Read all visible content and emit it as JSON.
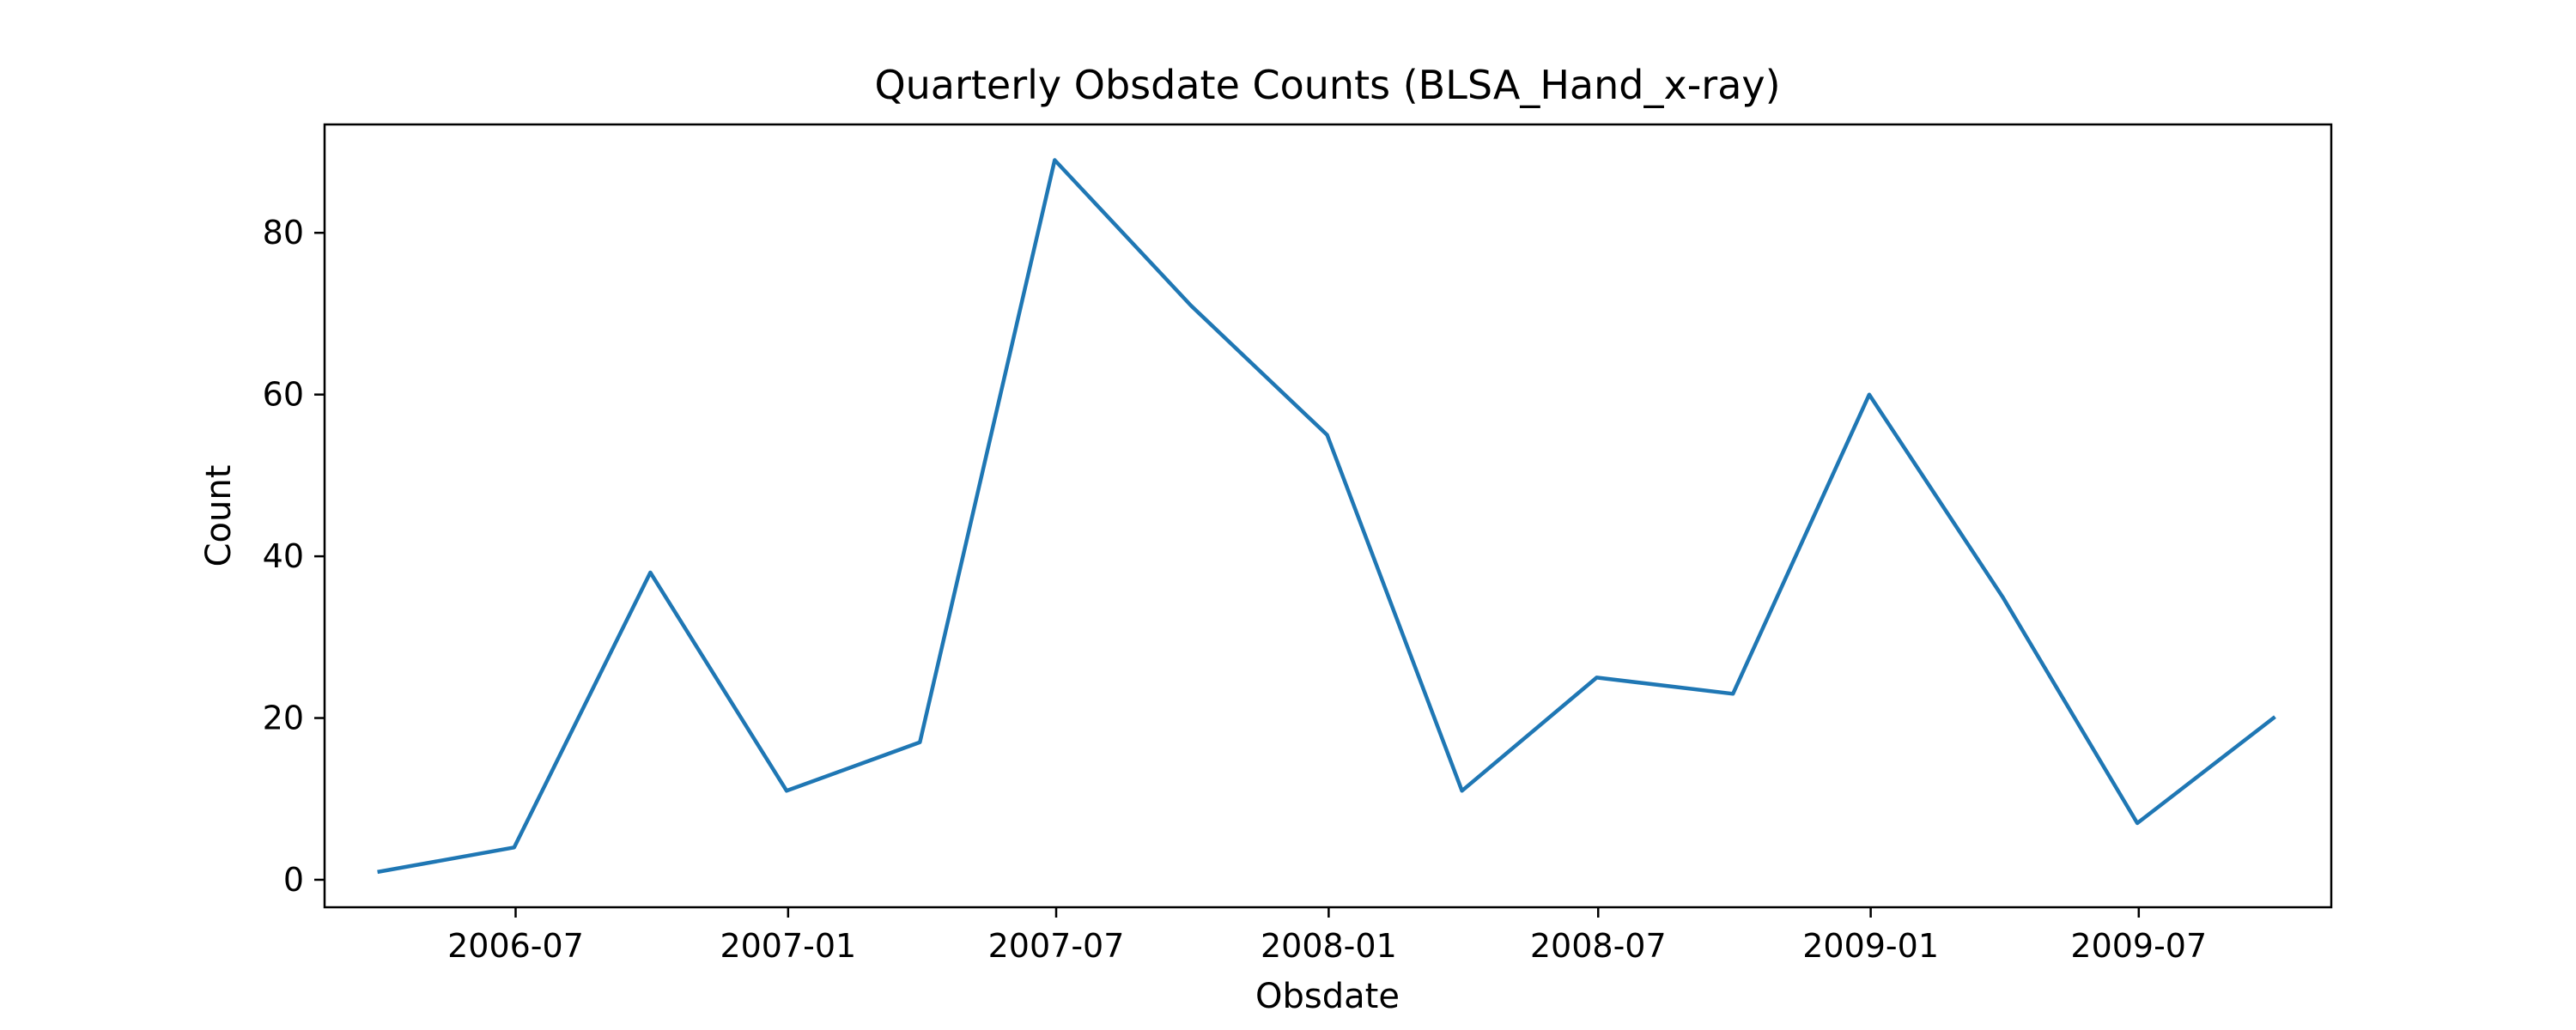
{
  "chart_data": {
    "type": "line",
    "title": "Quarterly Obsdate Counts (BLSA_Hand_x-ray)",
    "xlabel": "Obsdate",
    "ylabel": "Count",
    "x": [
      "2006-03-31",
      "2006-06-30",
      "2006-09-30",
      "2006-12-31",
      "2007-03-31",
      "2007-06-30",
      "2007-09-30",
      "2007-12-31",
      "2008-03-31",
      "2008-06-30",
      "2008-09-30",
      "2008-12-31",
      "2009-03-31",
      "2009-06-30",
      "2009-09-30"
    ],
    "series": [
      {
        "values": [
          1,
          4,
          38,
          11,
          17,
          89,
          71,
          55,
          11,
          25,
          23,
          60,
          35,
          7,
          20
        ],
        "color": "#1f77b4"
      }
    ],
    "xlim": [
      "2006-02-22",
      "2009-11-08"
    ],
    "ylim": [
      -3.4,
      93.4
    ],
    "x_ticks": [
      {
        "date": "2006-07-01",
        "label": "2006-07"
      },
      {
        "date": "2007-01-01",
        "label": "2007-01"
      },
      {
        "date": "2007-07-01",
        "label": "2007-07"
      },
      {
        "date": "2008-01-01",
        "label": "2008-01"
      },
      {
        "date": "2008-07-01",
        "label": "2008-07"
      },
      {
        "date": "2009-01-01",
        "label": "2009-01"
      },
      {
        "date": "2009-07-01",
        "label": "2009-07"
      }
    ],
    "y_ticks": [
      0,
      20,
      40,
      60,
      80
    ],
    "grid": false,
    "legend": "none"
  }
}
